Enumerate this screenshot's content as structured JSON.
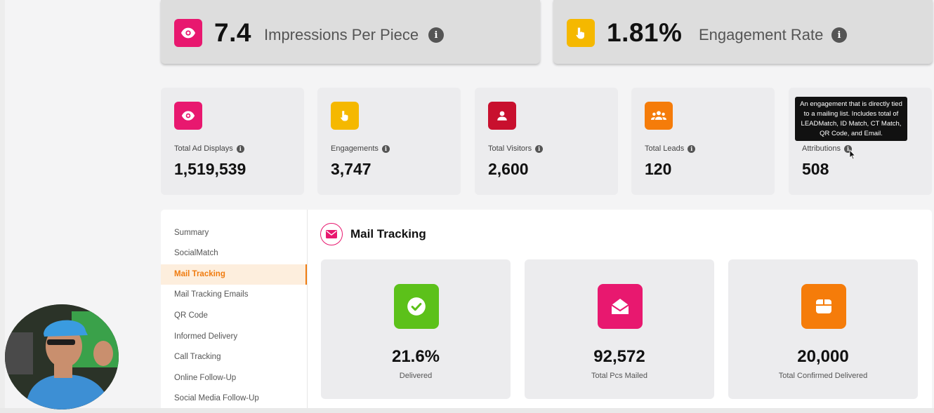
{
  "kpis": [
    {
      "value": "7.4",
      "label": "Impressions Per Piece",
      "color": "#e8186f",
      "icon": "eye-icon"
    },
    {
      "value": "1.81%",
      "label": "Engagement Rate",
      "color": "#f5b800",
      "icon": "hand-pointer-icon"
    }
  ],
  "stats": [
    {
      "label": "Total Ad Displays",
      "value": "1,519,539",
      "color": "#e8186f",
      "icon": "eye-icon"
    },
    {
      "label": "Engagements",
      "value": "3,747",
      "color": "#f5b800",
      "icon": "hand-pointer-icon"
    },
    {
      "label": "Total Visitors",
      "value": "2,600",
      "color": "#c8102e",
      "icon": "user-icon"
    },
    {
      "label": "Total Leads",
      "value": "120",
      "color": "#f57c0a",
      "icon": "users-icon"
    },
    {
      "label": "Attributions",
      "value": "508"
    }
  ],
  "tooltip": "An engagement that is directly tied to a mailing list. Includes total of LEADMatch, ID Match, CT Match, QR Code, and Email.",
  "nav": {
    "items": [
      "Summary",
      "SocialMatch",
      "Mail Tracking",
      "Mail Tracking Emails",
      "QR Code",
      "Informed Delivery",
      "Call Tracking",
      "Online Follow-Up",
      "Social Media Follow-Up"
    ],
    "active": "Mail Tracking"
  },
  "section": {
    "title": "Mail Tracking"
  },
  "mail_cards": [
    {
      "value": "21.6%",
      "label": "Delivered",
      "color": "#5cc11a",
      "icon": "check-circle-icon"
    },
    {
      "value": "92,572",
      "label": "Total Pcs Mailed",
      "color": "#e8186f",
      "icon": "envelope-open-icon"
    },
    {
      "value": "20,000",
      "label": "Total Confirmed Delivered",
      "color": "#f57c0a",
      "icon": "box-icon"
    }
  ]
}
